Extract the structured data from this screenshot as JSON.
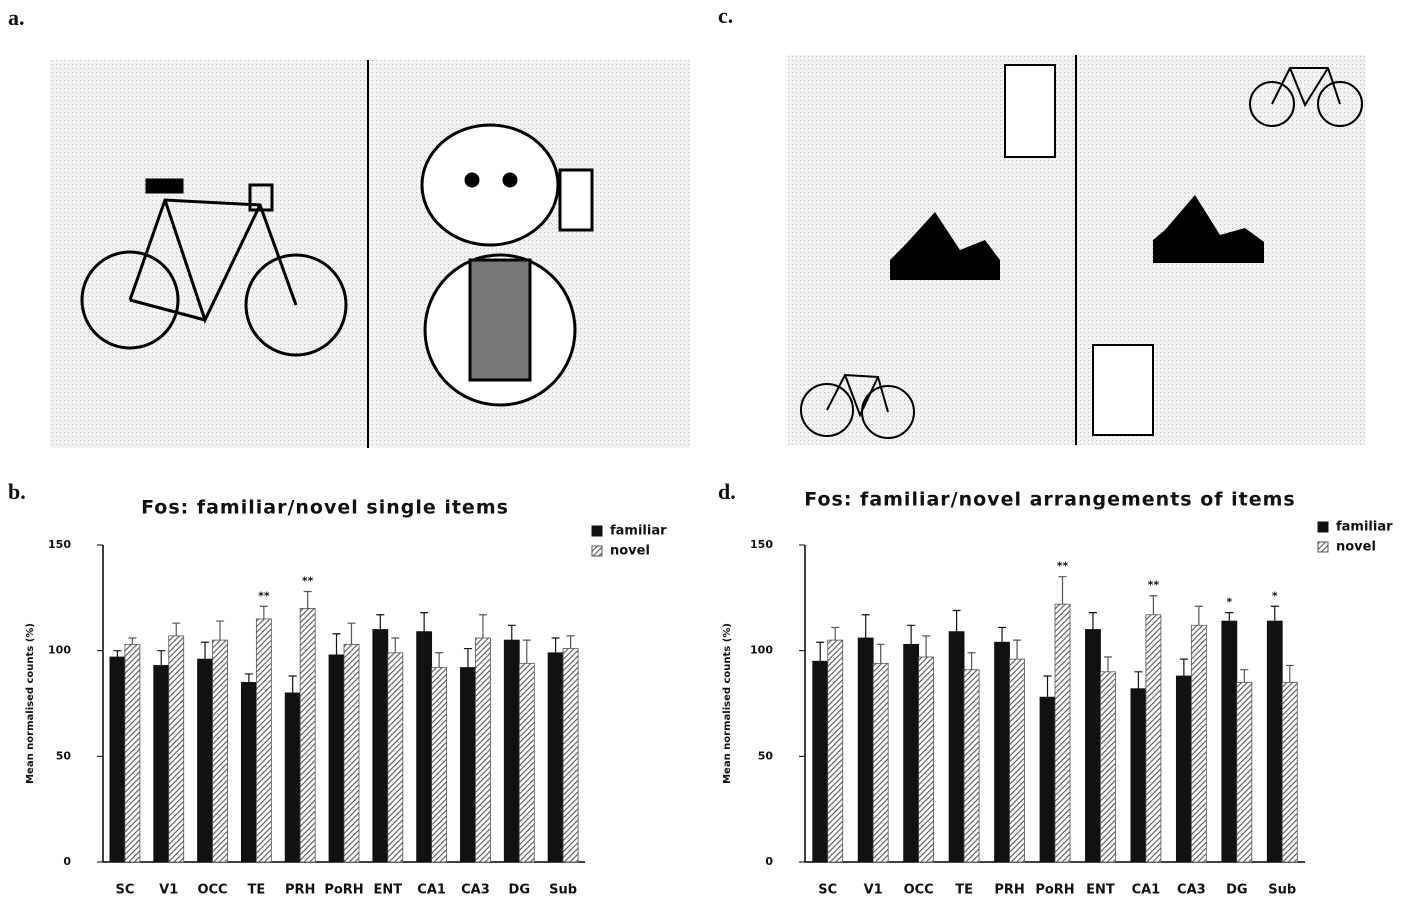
{
  "panel_labels": [
    "a.",
    "b.",
    "c.",
    "d."
  ],
  "chart_data": [
    {
      "type": "bar",
      "title": "Fos: familiar/novel single items",
      "y_label": "Mean normalised counts (%)",
      "categories": [
        "SC",
        "V1",
        "OCC",
        "TE",
        "PRH",
        "PoRH",
        "ENT",
        "CA1",
        "CA3",
        "DG",
        "Sub"
      ],
      "series": [
        {
          "name": "familiar",
          "color": "#111111",
          "hatch": false,
          "values": [
            97,
            93,
            96,
            85,
            80,
            98,
            110,
            109,
            92,
            105,
            99
          ],
          "errors": [
            3,
            7,
            8,
            4,
            8,
            10,
            7,
            9,
            9,
            7,
            7
          ],
          "markers": [
            null,
            null,
            null,
            null,
            null,
            null,
            null,
            null,
            null,
            null,
            null
          ]
        },
        {
          "name": "novel",
          "color": "#555555",
          "hatch": true,
          "values": [
            103,
            107,
            105,
            115,
            120,
            103,
            99,
            92,
            106,
            94,
            101
          ],
          "errors": [
            3,
            6,
            9,
            6,
            8,
            10,
            7,
            7,
            11,
            11,
            6
          ],
          "markers": [
            null,
            null,
            null,
            "**",
            "**",
            null,
            null,
            null,
            null,
            null,
            null
          ]
        }
      ],
      "ylim": [
        0,
        150
      ],
      "yticks": [
        0,
        50,
        100,
        150
      ],
      "grid": false,
      "legend": "upper right"
    },
    {
      "type": "bar",
      "title": "Fos: familiar/novel arrangements of items",
      "y_label": "Mean normalised counts (%)",
      "categories": [
        "SC",
        "V1",
        "OCC",
        "TE",
        "PRH",
        "PoRH",
        "ENT",
        "CA1",
        "CA3",
        "DG",
        "Sub"
      ],
      "series": [
        {
          "name": "familiar",
          "color": "#111111",
          "hatch": false,
          "values": [
            95,
            106,
            103,
            109,
            104,
            78,
            110,
            82,
            88,
            114,
            114
          ],
          "errors": [
            9,
            11,
            9,
            10,
            7,
            10,
            8,
            8,
            8,
            4,
            7
          ],
          "markers": [
            null,
            null,
            null,
            null,
            null,
            null,
            null,
            null,
            null,
            "*",
            "*"
          ]
        },
        {
          "name": "novel",
          "color": "#555555",
          "hatch": true,
          "values": [
            105,
            94,
            97,
            91,
            96,
            122,
            90,
            117,
            112,
            85,
            85
          ],
          "errors": [
            6,
            9,
            10,
            8,
            9,
            13,
            7,
            9,
            9,
            6,
            8
          ],
          "markers": [
            null,
            null,
            null,
            null,
            null,
            "**",
            null,
            "**",
            null,
            null,
            null
          ]
        }
      ],
      "ylim": [
        0,
        150
      ],
      "yticks": [
        0,
        50,
        100,
        150
      ],
      "grid": false,
      "legend": "upper right"
    }
  ]
}
